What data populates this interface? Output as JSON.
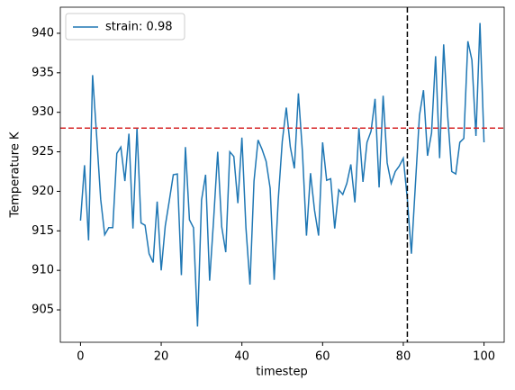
{
  "chart_data": {
    "type": "line",
    "xlabel": "timestep",
    "ylabel": "Temperature K",
    "x": [
      0,
      1,
      2,
      3,
      4,
      5,
      6,
      7,
      8,
      9,
      10,
      11,
      12,
      13,
      14,
      15,
      16,
      17,
      18,
      19,
      20,
      21,
      22,
      23,
      24,
      25,
      26,
      27,
      28,
      29,
      30,
      31,
      32,
      33,
      34,
      35,
      36,
      37,
      38,
      39,
      40,
      41,
      42,
      43,
      44,
      45,
      46,
      47,
      48,
      49,
      50,
      51,
      52,
      53,
      54,
      55,
      56,
      57,
      58,
      59,
      60,
      61,
      62,
      63,
      64,
      65,
      66,
      67,
      68,
      69,
      70,
      71,
      72,
      73,
      74,
      75,
      76,
      77,
      78,
      79,
      80,
      81,
      82,
      83,
      84,
      85,
      86,
      87,
      88,
      89,
      90,
      91,
      92,
      93,
      94,
      95,
      96,
      97,
      98,
      99,
      100
    ],
    "series": [
      {
        "name": "strain: 0.98",
        "color": "#1f77b4",
        "values": [
          916.3,
          923.3,
          913.8,
          934.7,
          927,
          919,
          914.5,
          915.4,
          915.4,
          924.8,
          925.6,
          921.3,
          927.3,
          915.3,
          928,
          916,
          915.7,
          912.1,
          911,
          918.7,
          910,
          915.6,
          918.8,
          922.1,
          922.2,
          909.4,
          925.6,
          916.4,
          915.4,
          902.9,
          918.9,
          922.1,
          908.7,
          916.5,
          925,
          915.5,
          912.3,
          925,
          924.4,
          918.5,
          926.8,
          915.4,
          908.2,
          921.3,
          926.5,
          925.3,
          923.8,
          920.4,
          908.8,
          918.9,
          926.3,
          930.6,
          925.6,
          922.9,
          932.4,
          925,
          914.4,
          922.3,
          917.6,
          914.4,
          926.2,
          921.4,
          921.6,
          915.3,
          920.2,
          919.6,
          921,
          923.4,
          918.6,
          928,
          921.2,
          926.2,
          927.6,
          931.7,
          920.5,
          932.1,
          923.6,
          921,
          922.5,
          923.2,
          924.2,
          919,
          912.1,
          920.9,
          929.6,
          932.8,
          924.5,
          927.4,
          937.1,
          924.2,
          938.6,
          929.5,
          922.5,
          922.2,
          926.2,
          926.7,
          939,
          936.6,
          927,
          941.3,
          926.2
        ]
      }
    ],
    "reference_lines": [
      {
        "axis": "y",
        "value": 928,
        "color": "#d62728"
      },
      {
        "axis": "x",
        "value": 81,
        "color": "#000000"
      }
    ],
    "xlim": [
      -5,
      105
    ],
    "ylim": [
      900.9,
      943.3
    ],
    "xticks": [
      0,
      20,
      40,
      60,
      80,
      100
    ],
    "yticks": [
      905,
      910,
      915,
      920,
      925,
      930,
      935,
      940
    ],
    "legend": "upper left"
  }
}
